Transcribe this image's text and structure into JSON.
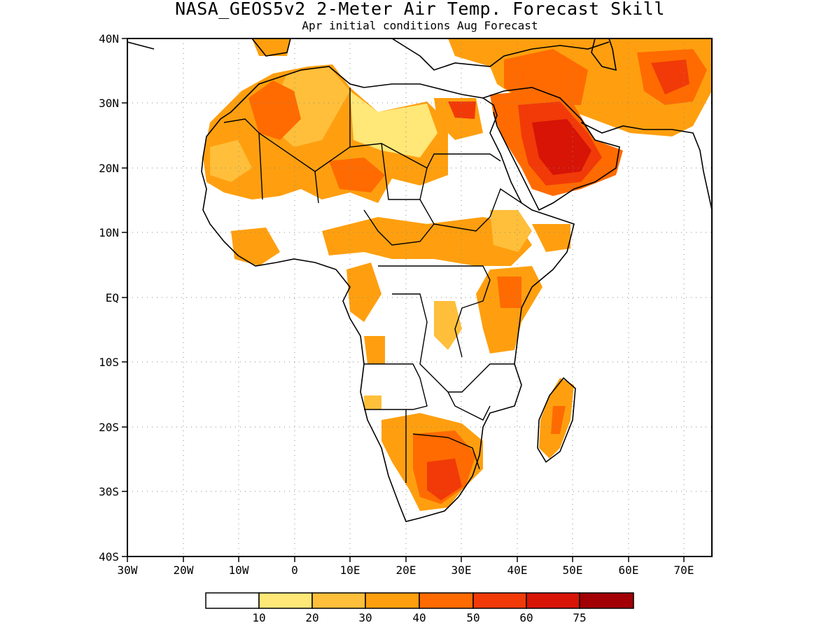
{
  "title": "NASA_GEOS5v2 2-Meter Air Temp. Forecast Skill",
  "subtitle": "Apr initial conditions  Aug Forecast",
  "map": {
    "lon_range": [
      -30,
      75
    ],
    "lat_range": [
      -40,
      40
    ],
    "lon_ticks": [
      "30W",
      "20W",
      "10W",
      "0",
      "10E",
      "20E",
      "30E",
      "40E",
      "50E",
      "60E",
      "70E"
    ],
    "lat_ticks": [
      "40N",
      "30N",
      "20N",
      "10N",
      "EQ",
      "10S",
      "20S",
      "30S",
      "40S"
    ],
    "grid": "dotted"
  },
  "legend": {
    "labels": [
      "10",
      "20",
      "30",
      "40",
      "50",
      "60",
      "75"
    ],
    "colors": [
      "#ffffff",
      "#ffe778",
      "#ffbf3b",
      "#ff9f0f",
      "#ff6b00",
      "#f13a08",
      "#d71406",
      "#a20004"
    ]
  },
  "regions": [
    {
      "name": "arabia",
      "level": 6
    },
    {
      "name": "sahara-west",
      "level": 4
    },
    {
      "name": "south-africa",
      "level": 5
    },
    {
      "name": "madagascar",
      "level": 4
    }
  ]
}
